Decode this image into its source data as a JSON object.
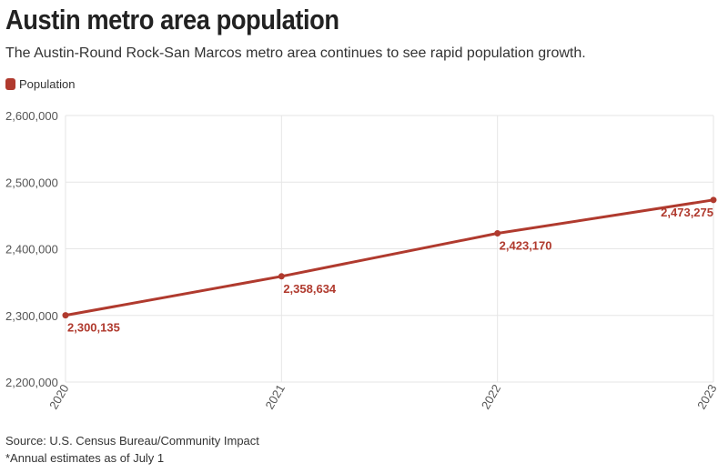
{
  "title": "Austin metro area population",
  "subtitle": "The Austin-Round Rock-San Marcos metro area continues to see rapid population growth.",
  "source": "Source: U.S. Census Bureau/Community Impact",
  "note": "*Annual estimates as of July 1",
  "colors": {
    "series": "#b03a2e",
    "grid": "#e6e6e6",
    "axis_text": "#555555"
  },
  "chart_data": {
    "type": "line",
    "title": "Austin metro area population",
    "xlabel": "",
    "ylabel": "",
    "x": [
      "2020",
      "2021",
      "2022",
      "2023"
    ],
    "series": [
      {
        "name": "Population",
        "values": [
          2300135,
          2358634,
          2423170,
          2473275
        ]
      }
    ],
    "data_labels": [
      "2,300,135",
      "2,358,634",
      "2,423,170",
      "2,473,275"
    ],
    "ylim": [
      2200000,
      2600000
    ],
    "yticks": [
      2200000,
      2300000,
      2400000,
      2500000,
      2600000
    ],
    "ytick_labels": [
      "2,200,000",
      "2,300,000",
      "2,400,000",
      "2,500,000",
      "2,600,000"
    ],
    "grid": true,
    "legend": "top-left"
  }
}
